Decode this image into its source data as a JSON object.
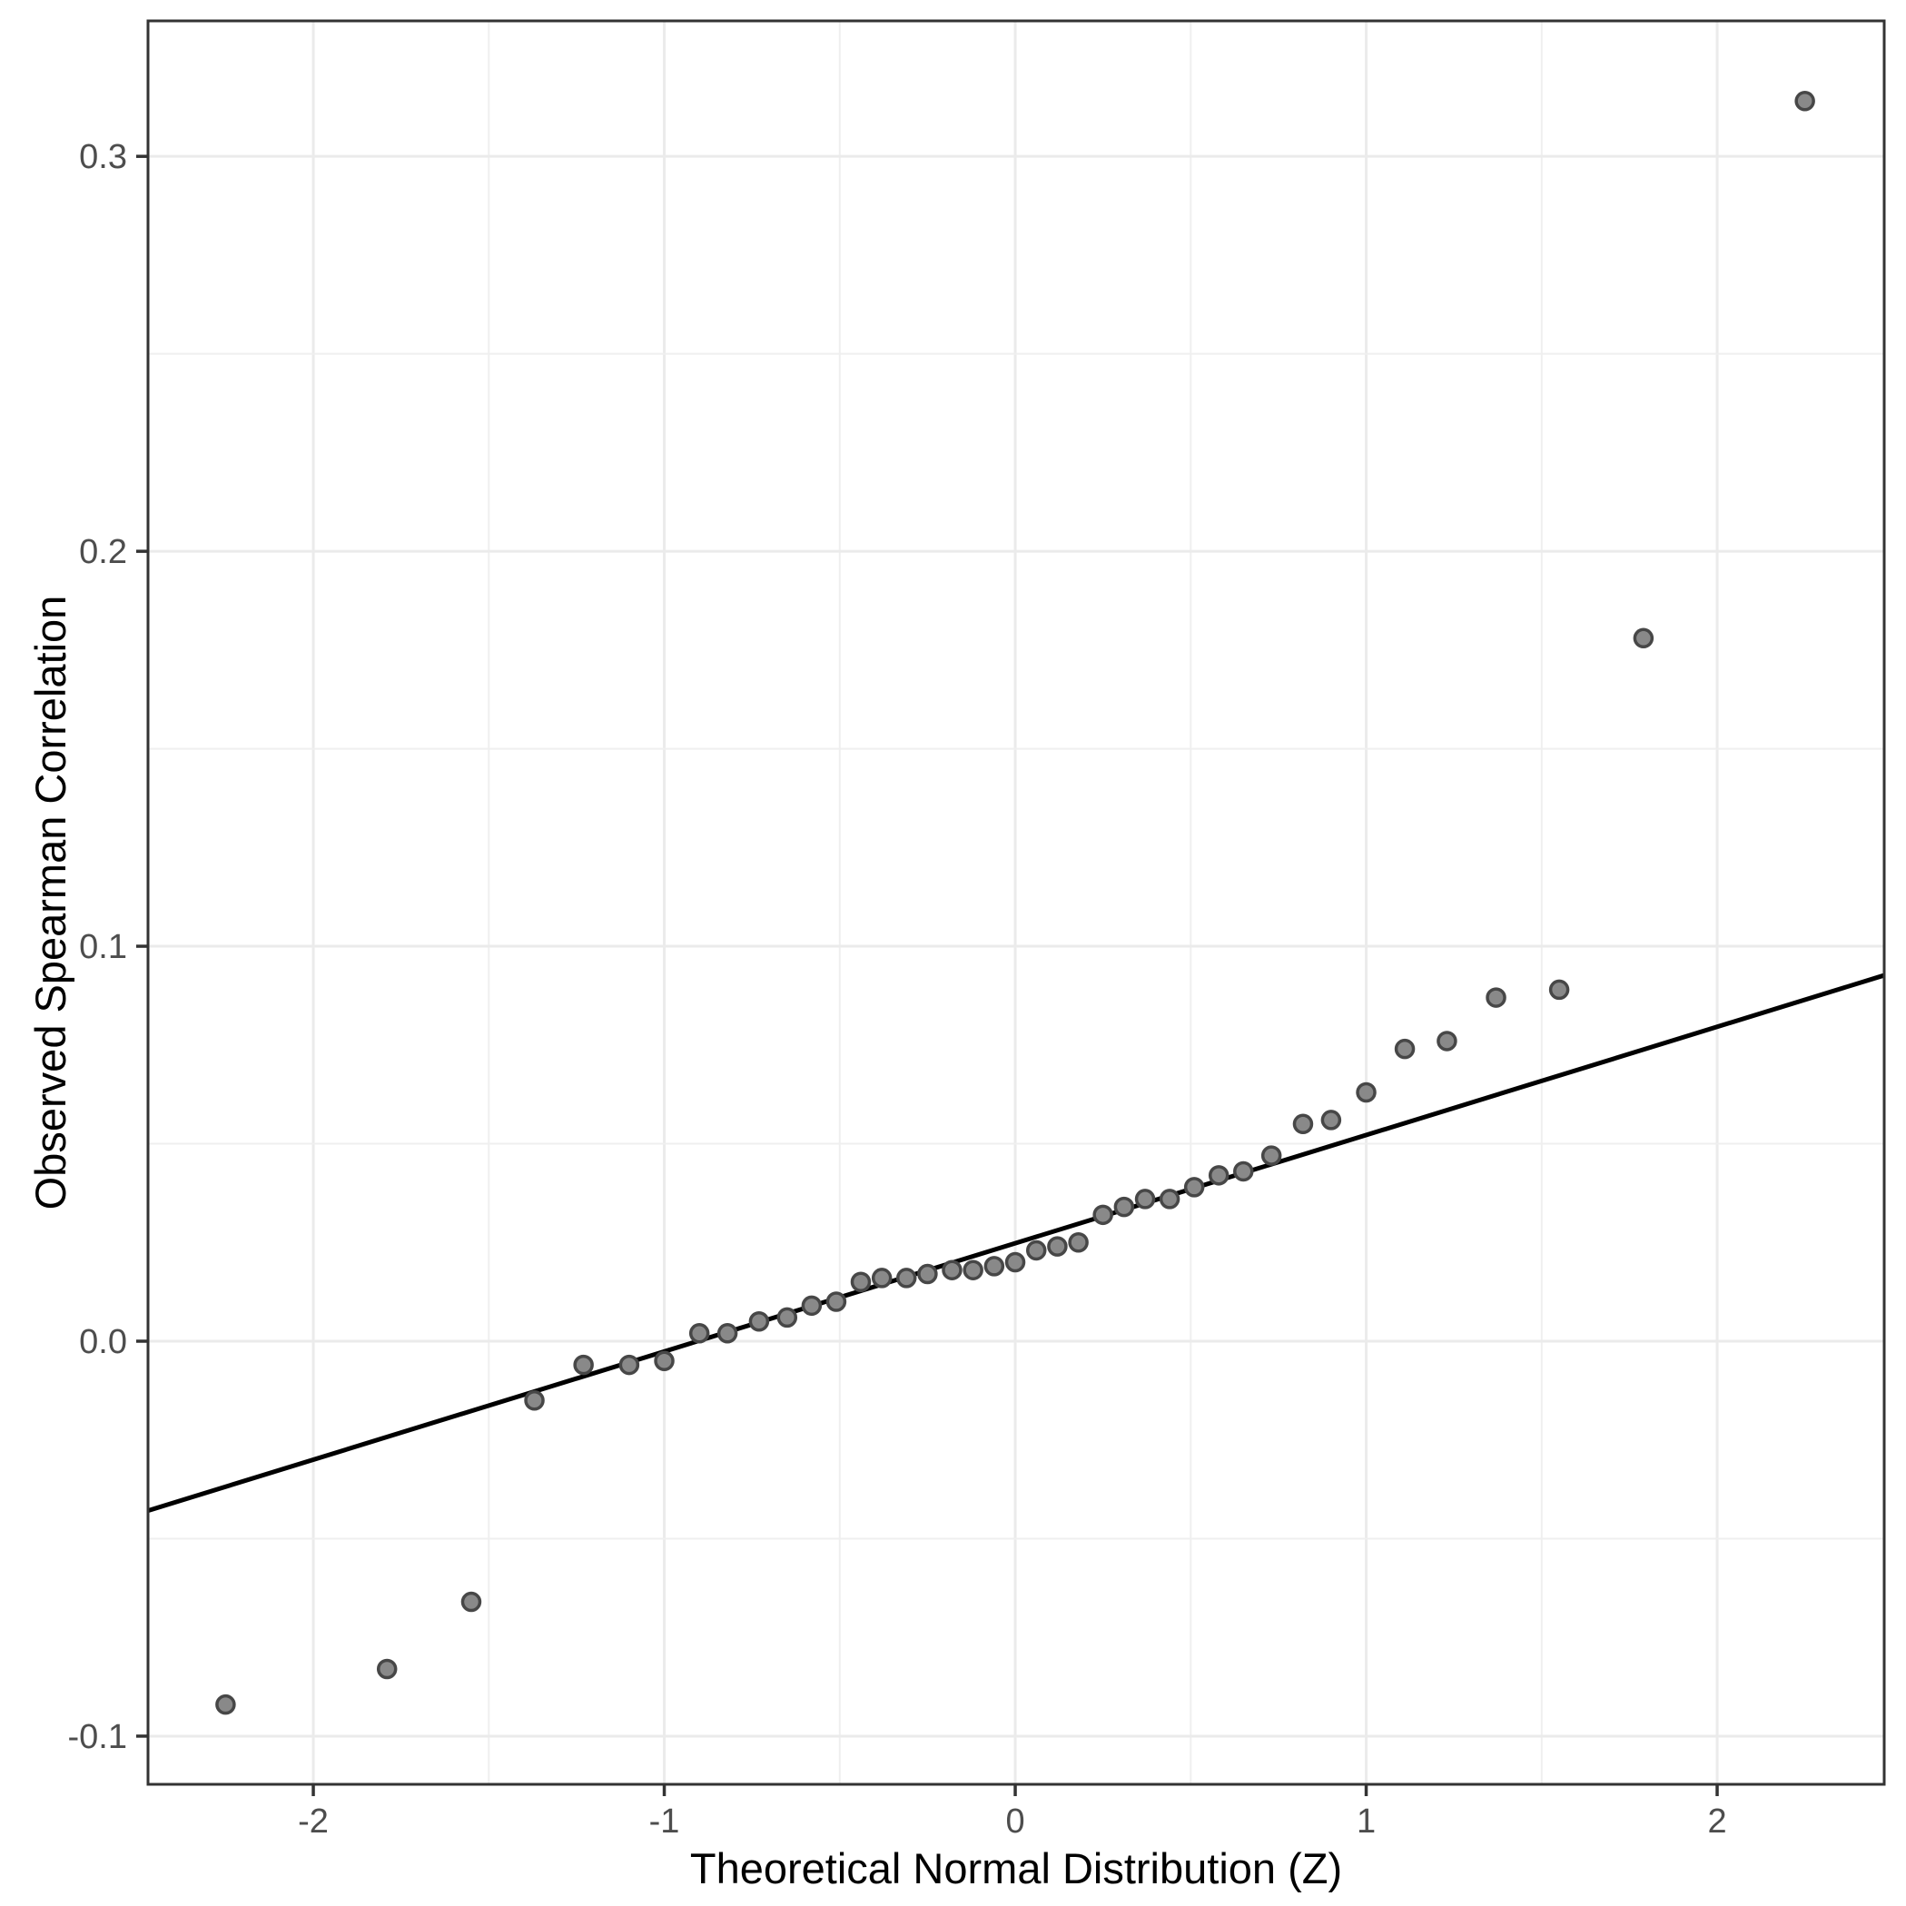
{
  "chart_data": {
    "type": "scatter",
    "title": "",
    "xlabel": "Theoretical Normal Distribution (Z)",
    "ylabel": "Observed Spearman Correlation",
    "x_tick_labels": [
      "-2",
      "-1",
      "0",
      "1",
      "2"
    ],
    "x_tick_values": [
      -2,
      -1,
      0,
      1,
      2
    ],
    "y_tick_labels": [
      "-0.1",
      "0.0",
      "0.1",
      "0.2",
      "0.3"
    ],
    "y_tick_values": [
      -0.1,
      0.0,
      0.1,
      0.2,
      0.3
    ],
    "xlim": [
      -2.471,
      2.476
    ],
    "ylim": [
      -0.1122,
      0.3343
    ],
    "x_minor_step": 0.5,
    "y_minor_step": 0.05,
    "grid": "on",
    "legend": "none",
    "x": [
      -2.25,
      -1.79,
      -1.55,
      -1.37,
      -1.23,
      -1.1,
      -1.0,
      -0.9,
      -0.82,
      -0.73,
      -0.65,
      -0.58,
      -0.51,
      -0.44,
      -0.38,
      -0.31,
      -0.25,
      -0.18,
      -0.12,
      -0.06,
      0.0,
      0.06,
      0.12,
      0.18,
      0.25,
      0.31,
      0.37,
      0.44,
      0.51,
      0.58,
      0.65,
      0.73,
      0.82,
      0.9,
      1.0,
      1.11,
      1.23,
      1.37,
      1.55,
      1.79,
      2.25
    ],
    "y": [
      -0.092,
      -0.083,
      -0.066,
      -0.015,
      -0.006,
      -0.006,
      -0.005,
      0.002,
      0.002,
      0.005,
      0.006,
      0.009,
      0.01,
      0.015,
      0.016,
      0.016,
      0.017,
      0.018,
      0.018,
      0.019,
      0.02,
      0.023,
      0.024,
      0.025,
      0.032,
      0.034,
      0.036,
      0.036,
      0.039,
      0.042,
      0.043,
      0.047,
      0.055,
      0.056,
      0.063,
      0.074,
      0.076,
      0.087,
      0.089,
      0.178,
      0.314
    ],
    "reference_line": {
      "intercept": 0.0248,
      "slope": 0.0274
    },
    "colors": {
      "background": "#ffffff",
      "panel_background": "#ffffff",
      "panel_border": "#333333",
      "grid_major": "#ebebeb",
      "grid_minor": "#efefef",
      "tick_mark": "#333333",
      "tick_label": "#4d4d4d",
      "axis_title": "#000000",
      "point_fill": "#898989",
      "point_stroke": "#474747",
      "line": "#000000"
    }
  }
}
